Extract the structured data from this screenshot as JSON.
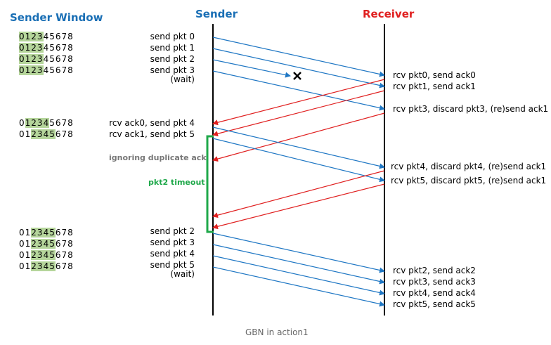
{
  "headers": {
    "sender_window": "Sender Window",
    "sender": "Sender",
    "receiver": "Receiver"
  },
  "colors": {
    "sender_window_title": "#1a6fb5",
    "sender_title": "#1a6fb5",
    "receiver_title": "#e02020",
    "data_arrow": "#1f77c4",
    "ack_arrow": "#e02020",
    "timeout": "#1fa84a",
    "window_highlight": "#b5d59b"
  },
  "window_digits": "012345678",
  "windows": [
    {
      "highlight": [
        0,
        1,
        2,
        3
      ]
    },
    {
      "highlight": [
        0,
        1,
        2,
        3
      ]
    },
    {
      "highlight": [
        0,
        1,
        2,
        3
      ]
    },
    {
      "highlight": [
        0,
        1,
        2,
        3
      ]
    },
    {
      "highlight": [
        1,
        2,
        3,
        4
      ]
    },
    {
      "highlight": [
        2,
        3,
        4,
        5
      ]
    },
    {
      "highlight": [
        2,
        3,
        4,
        5
      ]
    },
    {
      "highlight": [
        2,
        3,
        4,
        5
      ]
    },
    {
      "highlight": [
        2,
        3,
        4,
        5
      ]
    },
    {
      "highlight": [
        2,
        3,
        4,
        5
      ]
    }
  ],
  "sender_events": [
    "send pkt 0",
    "send pkt 1",
    "send pkt 2",
    "send pkt 3",
    "(wait)",
    "rcv ack0, send pkt 4",
    "rcv ack1, send pkt 5",
    "send pkt 2",
    "send pkt 3",
    "send pkt 4",
    "send pkt 5",
    "(wait)"
  ],
  "receiver_events": [
    "rcv pkt0, send ack0",
    "rcv pkt1, send ack1",
    "rcv pkt3, discard pkt3, (re)send ack1",
    "rcv pkt4, discard pkt4, (re)send ack1",
    "rcv pkt5, discard pkt5, (re)send ack1",
    "rcv pkt2, send ack2",
    "rcv pkt3, send ack3",
    "rcv pkt4, send ack4",
    "rcv pkt5, send ack5"
  ],
  "notes": {
    "ignoring_duplicate_ack": "ignoring duplicate ack",
    "timeout": "pkt2 timeout"
  },
  "caption": "GBN in action1"
}
